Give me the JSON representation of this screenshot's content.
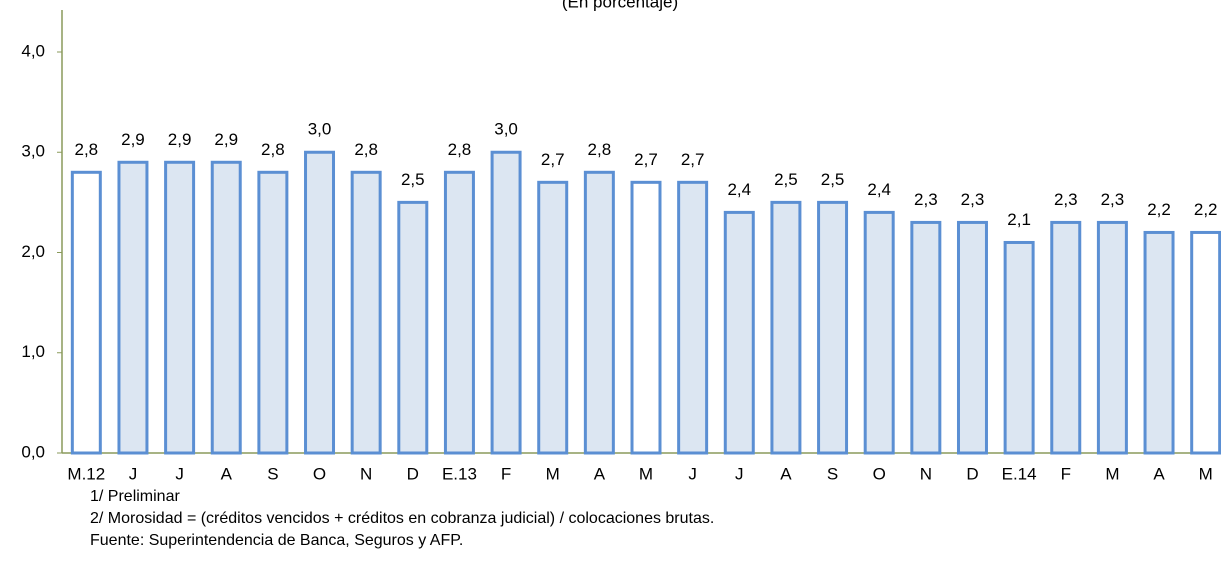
{
  "chart_data": {
    "type": "bar",
    "title": "(En porcentaje)",
    "categories": [
      "M.12",
      "J",
      "J",
      "A",
      "S",
      "O",
      "N",
      "D",
      "E.13",
      "F",
      "M",
      "A",
      "M",
      "J",
      "J",
      "A",
      "S",
      "O",
      "N",
      "D",
      "E.14",
      "F",
      "M",
      "A",
      "M"
    ],
    "values": [
      2.8,
      2.9,
      2.9,
      2.9,
      2.8,
      3.0,
      2.8,
      2.5,
      2.8,
      3.0,
      2.7,
      2.8,
      2.7,
      2.7,
      2.4,
      2.5,
      2.5,
      2.4,
      2.3,
      2.3,
      2.1,
      2.3,
      2.3,
      2.2,
      2.2
    ],
    "value_labels": [
      "2,8",
      "2,9",
      "2,9",
      "2,9",
      "2,8",
      "3,0",
      "2,8",
      "2,5",
      "2,8",
      "3,0",
      "2,7",
      "2,8",
      "2,7",
      "2,7",
      "2,4",
      "2,5",
      "2,5",
      "2,4",
      "2,3",
      "2,3",
      "2,1",
      "2,3",
      "2,3",
      "2,2",
      "2,2"
    ],
    "color": "#dce6f2",
    "edge_color": "#5b8fd3",
    "highlight_color": "#ffffff",
    "highlight": [
      0,
      12,
      24
    ],
    "ylim": [
      0,
      4
    ],
    "yticks": [
      {
        "value": 0,
        "label": "0,0"
      },
      {
        "value": 1,
        "label": "1,0"
      },
      {
        "value": 2,
        "label": "2,0"
      },
      {
        "value": 3,
        "label": "3,0"
      },
      {
        "value": 4,
        "label": "4,0"
      }
    ],
    "grid": false,
    "notes": [
      "1/ Preliminar",
      "2/ Morosidad = (créditos vencidos + créditos en cobranza judicial) / colocaciones brutas.",
      "Fuente: Superintendencia de Banca, Seguros y AFP."
    ]
  }
}
